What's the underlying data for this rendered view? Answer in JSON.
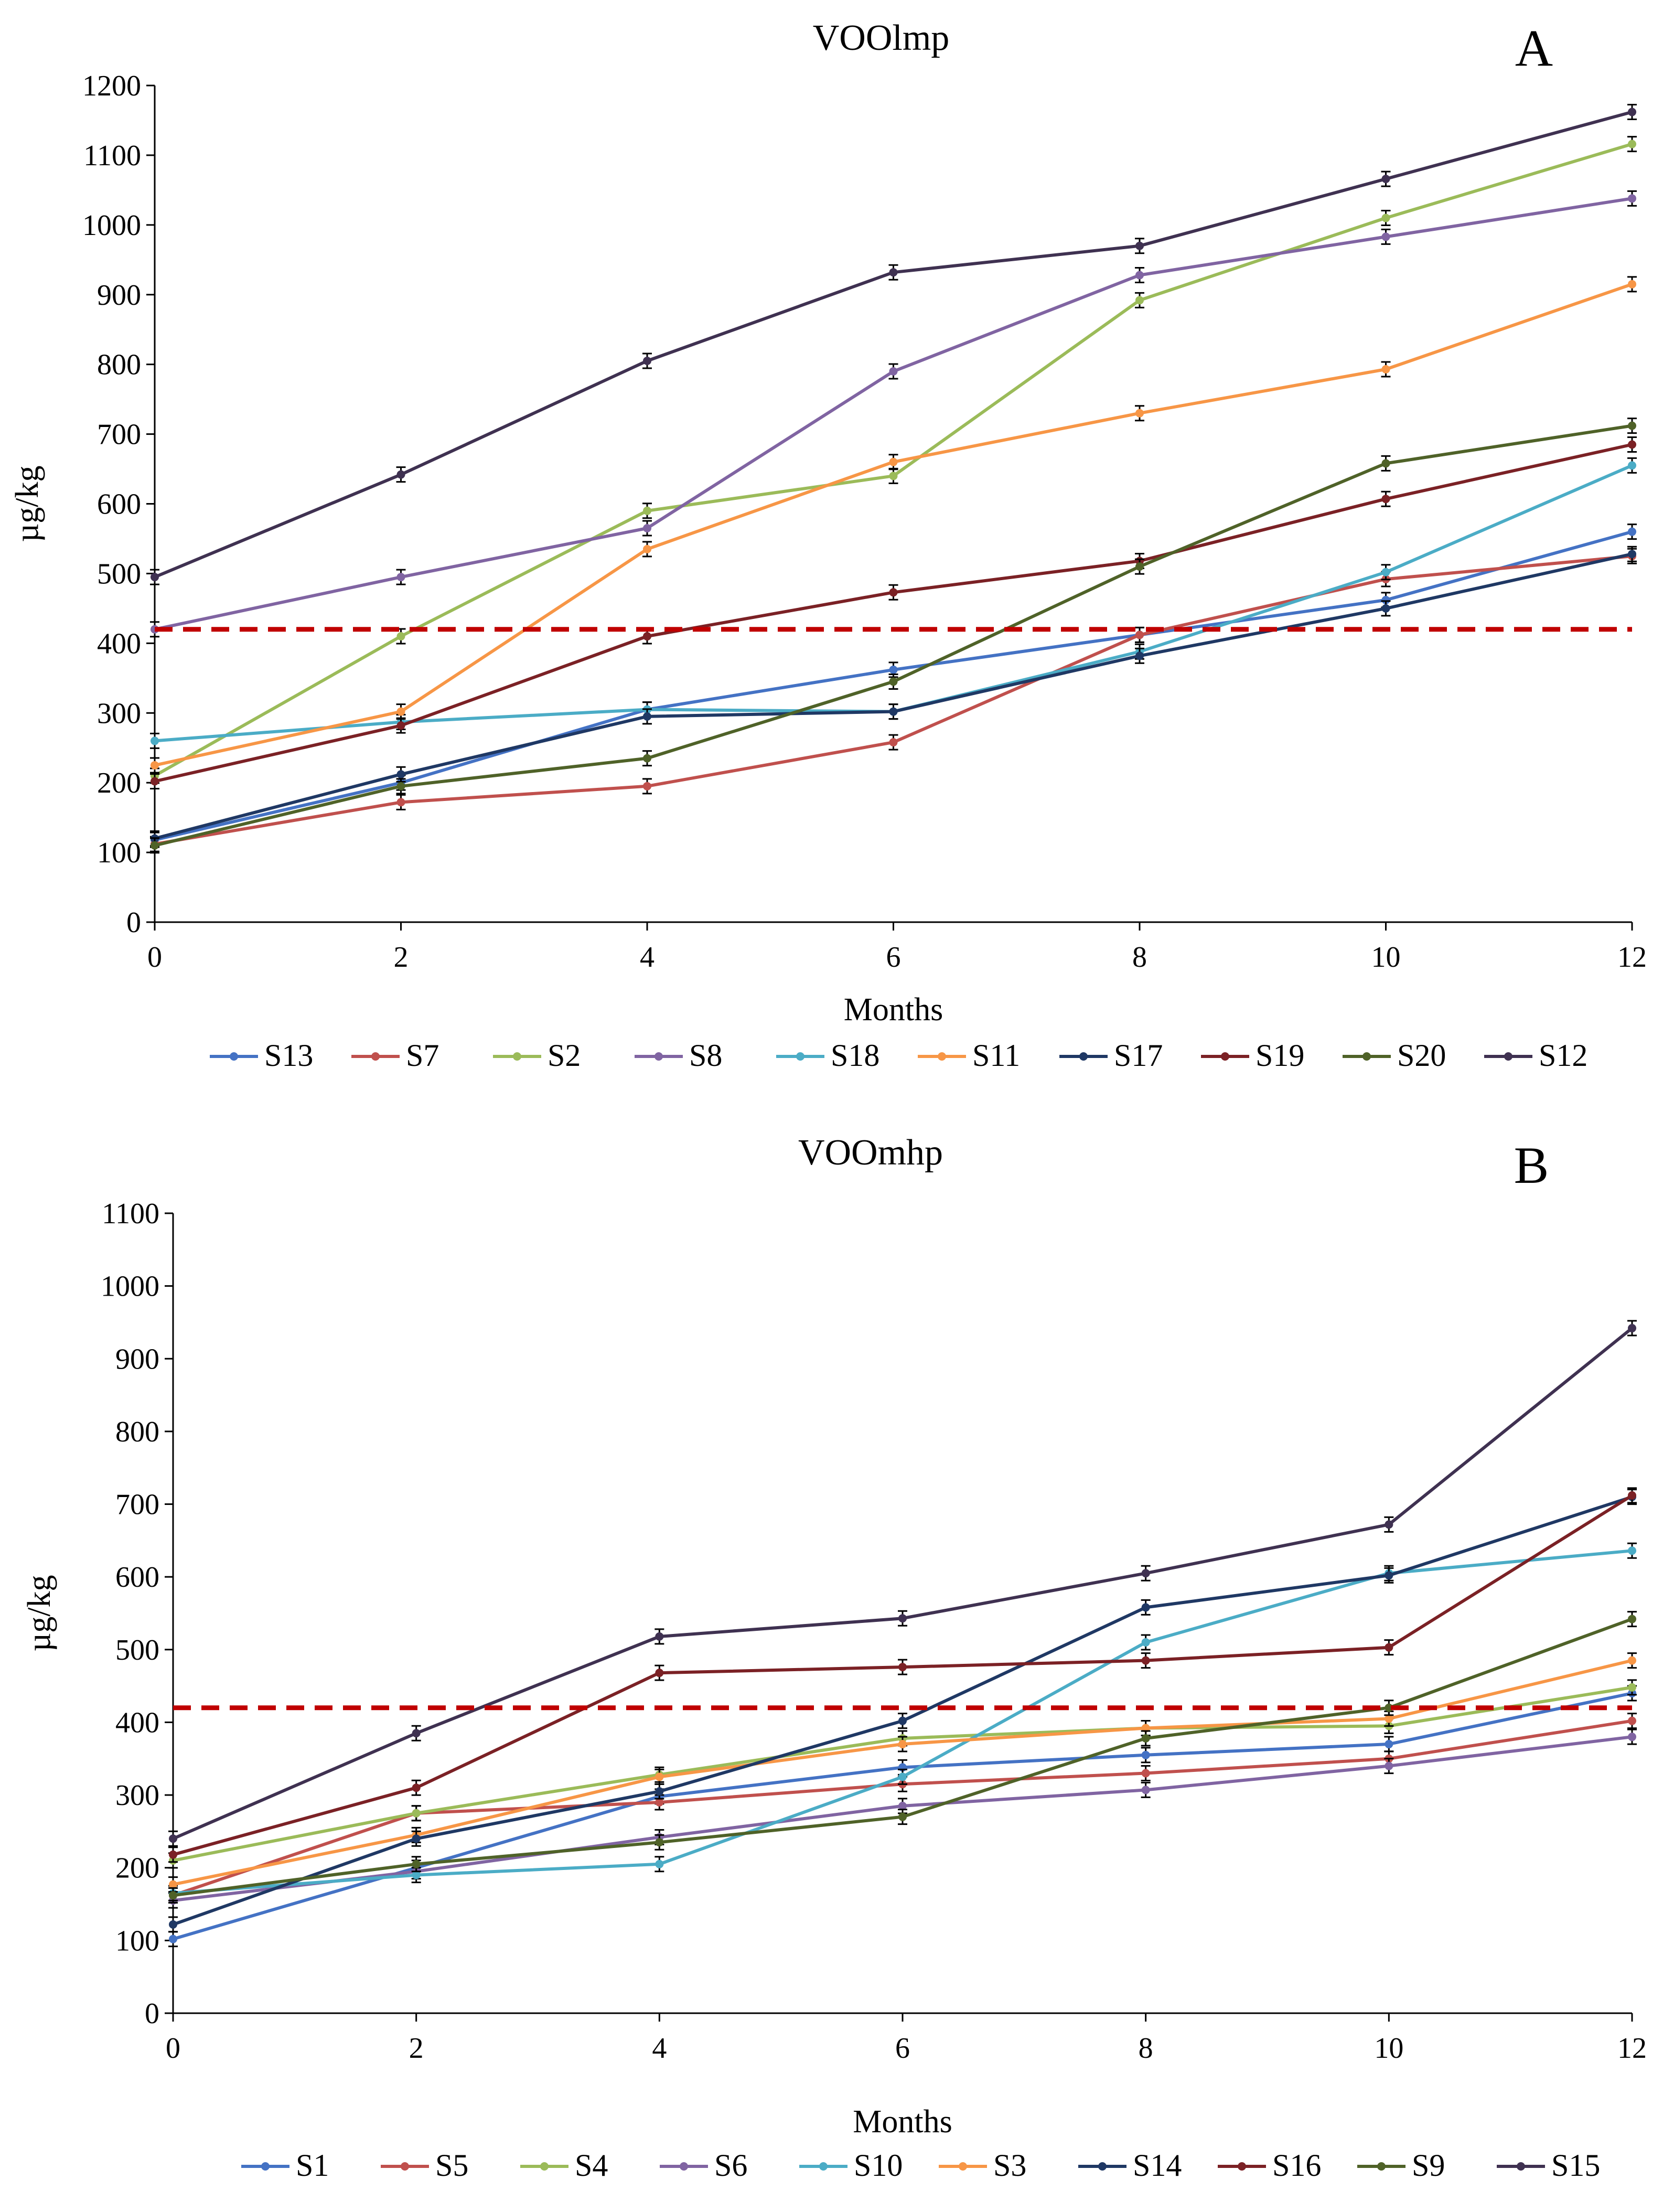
{
  "chart_data": [
    {
      "type": "line",
      "title": "VOOlmp",
      "panel_label": "A",
      "xlabel": "Months",
      "ylabel": "µg/kg",
      "x": [
        0,
        2,
        4,
        6,
        8,
        10,
        12
      ],
      "xlim": [
        0,
        12
      ],
      "ylim": [
        0,
        1200
      ],
      "yticks": [
        0,
        100,
        200,
        300,
        400,
        500,
        600,
        700,
        800,
        900,
        1000,
        1100,
        1200
      ],
      "xticks": [
        0,
        2,
        4,
        6,
        8,
        10,
        12
      ],
      "threshold": 420,
      "threshold_color": "#C00000",
      "legend_position": "bottom",
      "series": [
        {
          "name": "S13",
          "color": "#4472C4",
          "values": [
            118,
            200,
            305,
            362,
            412,
            462,
            560
          ]
        },
        {
          "name": "S7",
          "color": "#C0504D",
          "values": [
            112,
            172,
            195,
            258,
            412,
            492,
            525
          ]
        },
        {
          "name": "S2",
          "color": "#9BBB59",
          "values": [
            210,
            410,
            590,
            640,
            892,
            1010,
            1116
          ]
        },
        {
          "name": "S8",
          "color": "#8064A2",
          "values": [
            420,
            495,
            565,
            790,
            928,
            983,
            1038
          ]
        },
        {
          "name": "S18",
          "color": "#4BACC6",
          "values": [
            260,
            287,
            305,
            302,
            388,
            502,
            655
          ]
        },
        {
          "name": "S11",
          "color": "#F79646",
          "values": [
            225,
            302,
            535,
            660,
            730,
            793,
            915
          ]
        },
        {
          "name": "S17",
          "color": "#1F3864",
          "values": [
            120,
            212,
            295,
            302,
            382,
            450,
            528
          ]
        },
        {
          "name": "S19",
          "color": "#7B2125",
          "values": [
            202,
            282,
            410,
            473,
            518,
            607,
            685
          ]
        },
        {
          "name": "S20",
          "color": "#4F6228",
          "values": [
            110,
            195,
            235,
            345,
            510,
            658,
            712
          ]
        },
        {
          "name": "S12",
          "color": "#3F3151",
          "values": [
            495,
            642,
            805,
            932,
            970,
            1066,
            1162
          ]
        }
      ]
    },
    {
      "type": "line",
      "title": "VOOmhp",
      "panel_label": "B",
      "xlabel": "Months",
      "ylabel": "µg/kg",
      "x": [
        0,
        2,
        4,
        6,
        8,
        10,
        12
      ],
      "xlim": [
        0,
        12
      ],
      "ylim": [
        0,
        1100
      ],
      "yticks": [
        0,
        100,
        200,
        300,
        400,
        500,
        600,
        700,
        800,
        900,
        1000,
        1100
      ],
      "xticks": [
        0,
        2,
        4,
        6,
        8,
        10,
        12
      ],
      "threshold": 420,
      "threshold_color": "#C00000",
      "legend_position": "bottom",
      "series": [
        {
          "name": "S1",
          "color": "#4472C4",
          "values": [
            102,
            200,
            298,
            338,
            355,
            370,
            440
          ]
        },
        {
          "name": "S5",
          "color": "#C0504D",
          "values": [
            162,
            275,
            290,
            315,
            330,
            350,
            402
          ]
        },
        {
          "name": "S4",
          "color": "#9BBB59",
          "values": [
            210,
            275,
            328,
            378,
            392,
            395,
            448
          ]
        },
        {
          "name": "S6",
          "color": "#8064A2",
          "values": [
            155,
            195,
            242,
            285,
            307,
            340,
            380
          ]
        },
        {
          "name": "S10",
          "color": "#4BACC6",
          "values": [
            165,
            190,
            205,
            325,
            510,
            605,
            636
          ]
        },
        {
          "name": "S3",
          "color": "#F79646",
          "values": [
            177,
            245,
            325,
            370,
            392,
            405,
            485
          ]
        },
        {
          "name": "S14",
          "color": "#1F3864",
          "values": [
            122,
            240,
            305,
            402,
            558,
            602,
            710
          ]
        },
        {
          "name": "S16",
          "color": "#7B2125",
          "values": [
            218,
            310,
            468,
            476,
            485,
            503,
            712
          ]
        },
        {
          "name": "S9",
          "color": "#4F6228",
          "values": [
            162,
            205,
            235,
            270,
            378,
            420,
            542
          ]
        },
        {
          "name": "S15",
          "color": "#3F3151",
          "values": [
            240,
            385,
            518,
            543,
            605,
            672,
            942
          ]
        }
      ]
    }
  ]
}
